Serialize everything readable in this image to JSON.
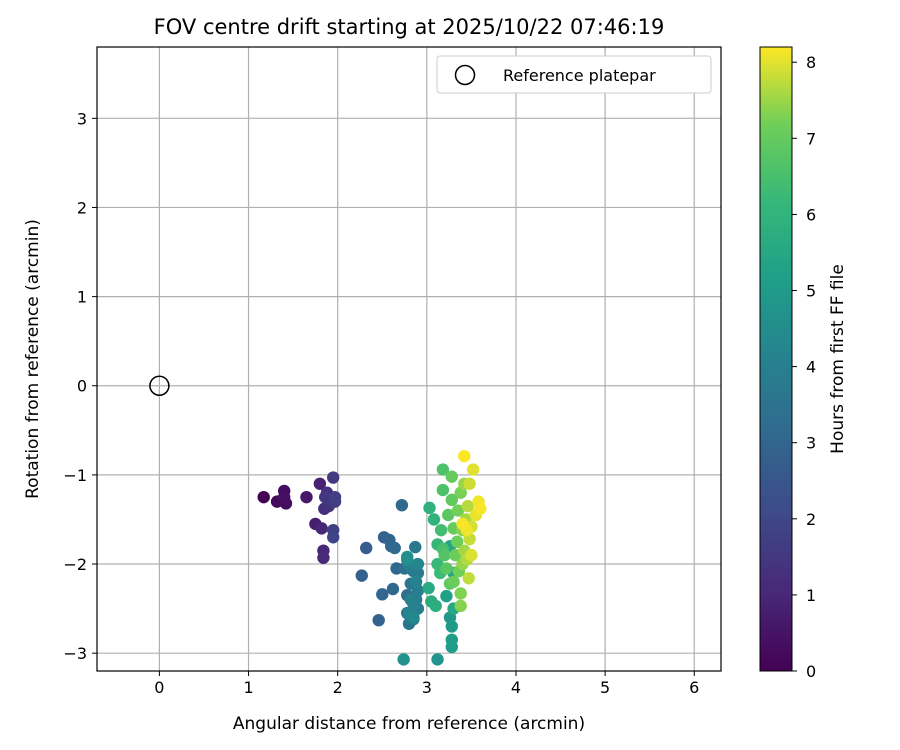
{
  "chart_data": {
    "type": "scatter",
    "title": "FOV centre drift starting at 2025/10/22 07:46:19",
    "xlabel": "Angular distance from reference (arcmin)",
    "ylabel": "Rotation from reference (arcmin)",
    "xlim": [
      -0.7,
      6.3
    ],
    "ylim": [
      -3.2,
      3.8
    ],
    "xticks": [
      0,
      1,
      2,
      3,
      4,
      5,
      6
    ],
    "yticks": [
      -3,
      -2,
      -1,
      0,
      1,
      2,
      3
    ],
    "grid": true,
    "legend": {
      "placement": "top-right",
      "entries": [
        "Reference platepar"
      ]
    },
    "reference_point": {
      "name": "Reference platepar",
      "x": 0,
      "y": 0
    },
    "colorbar": {
      "label": "Hours from first FF file",
      "range": [
        0,
        8.2
      ],
      "ticks": [
        0,
        1,
        2,
        3,
        4,
        5,
        6,
        7,
        8
      ],
      "colormap": "viridis"
    },
    "series": [
      {
        "points": [
          {
            "x": 1.17,
            "y": -1.25,
            "t": 0.05
          },
          {
            "x": 1.32,
            "y": -1.3,
            "t": 0.2
          },
          {
            "x": 1.4,
            "y": -1.18,
            "t": 0.3
          },
          {
            "x": 1.42,
            "y": -1.32,
            "t": 0.35
          },
          {
            "x": 1.4,
            "y": -1.25,
            "t": 0.4
          },
          {
            "x": 1.65,
            "y": -1.25,
            "t": 0.6
          },
          {
            "x": 1.75,
            "y": -1.55,
            "t": 0.75
          },
          {
            "x": 1.8,
            "y": -1.1,
            "t": 0.9
          },
          {
            "x": 1.82,
            "y": -1.6,
            "t": 1.0
          },
          {
            "x": 1.84,
            "y": -1.85,
            "t": 1.05
          },
          {
            "x": 1.84,
            "y": -1.93,
            "t": 1.1
          },
          {
            "x": 1.85,
            "y": -1.38,
            "t": 1.2
          },
          {
            "x": 1.88,
            "y": -1.2,
            "t": 1.3
          },
          {
            "x": 1.9,
            "y": -1.35,
            "t": 1.4
          },
          {
            "x": 1.86,
            "y": -1.25,
            "t": 1.45
          },
          {
            "x": 1.95,
            "y": -1.03,
            "t": 1.6
          },
          {
            "x": 1.97,
            "y": -1.3,
            "t": 1.7
          },
          {
            "x": 1.97,
            "y": -1.25,
            "t": 1.75
          },
          {
            "x": 1.95,
            "y": -1.62,
            "t": 1.8
          },
          {
            "x": 1.95,
            "y": -1.7,
            "t": 1.9
          },
          {
            "x": 2.27,
            "y": -2.13,
            "t": 2.8
          },
          {
            "x": 2.32,
            "y": -1.82,
            "t": 2.7
          },
          {
            "x": 2.46,
            "y": -2.63,
            "t": 2.9
          },
          {
            "x": 2.5,
            "y": -2.34,
            "t": 3.0
          },
          {
            "x": 2.52,
            "y": -1.7,
            "t": 2.9
          },
          {
            "x": 2.58,
            "y": -1.73,
            "t": 2.95
          },
          {
            "x": 2.6,
            "y": -1.8,
            "t": 3.0
          },
          {
            "x": 2.62,
            "y": -2.28,
            "t": 3.05
          },
          {
            "x": 2.66,
            "y": -2.05,
            "t": 3.1
          },
          {
            "x": 2.64,
            "y": -1.82,
            "t": 3.1
          },
          {
            "x": 2.72,
            "y": -1.34,
            "t": 3.2
          },
          {
            "x": 2.75,
            "y": -2.05,
            "t": 3.3
          },
          {
            "x": 2.78,
            "y": -2.35,
            "t": 3.4
          },
          {
            "x": 2.78,
            "y": -2.55,
            "t": 3.5
          },
          {
            "x": 2.8,
            "y": -2.67,
            "t": 3.55
          },
          {
            "x": 2.82,
            "y": -2.22,
            "t": 3.6
          },
          {
            "x": 2.85,
            "y": -2.62,
            "t": 3.7
          },
          {
            "x": 2.87,
            "y": -1.81,
            "t": 3.7
          },
          {
            "x": 2.88,
            "y": -2.4,
            "t": 3.75
          },
          {
            "x": 2.85,
            "y": -2.08,
            "t": 3.8
          },
          {
            "x": 2.9,
            "y": -2.1,
            "t": 3.85
          },
          {
            "x": 2.9,
            "y": -2.5,
            "t": 3.9
          },
          {
            "x": 2.9,
            "y": -2.3,
            "t": 3.95
          },
          {
            "x": 2.8,
            "y": -2.02,
            "t": 4.0
          },
          {
            "x": 2.85,
            "y": -2.45,
            "t": 4.05
          },
          {
            "x": 2.88,
            "y": -2.2,
            "t": 4.1
          },
          {
            "x": 2.82,
            "y": -2.4,
            "t": 4.15
          },
          {
            "x": 2.8,
            "y": -2.55,
            "t": 4.2
          },
          {
            "x": 2.9,
            "y": -2.0,
            "t": 4.3
          },
          {
            "x": 2.85,
            "y": -2.6,
            "t": 4.35
          },
          {
            "x": 2.78,
            "y": -1.95,
            "t": 4.5
          },
          {
            "x": 2.78,
            "y": -1.92,
            "t": 4.6
          },
          {
            "x": 2.74,
            "y": -3.07,
            "t": 4.7
          },
          {
            "x": 3.12,
            "y": -3.07,
            "t": 4.8
          },
          {
            "x": 3.26,
            "y": -2.6,
            "t": 4.9
          },
          {
            "x": 3.28,
            "y": -2.7,
            "t": 5.0
          },
          {
            "x": 3.28,
            "y": -2.85,
            "t": 5.05
          },
          {
            "x": 3.28,
            "y": -2.93,
            "t": 5.1
          },
          {
            "x": 3.22,
            "y": -2.36,
            "t": 5.2
          },
          {
            "x": 3.3,
            "y": -2.1,
            "t": 5.3
          },
          {
            "x": 3.26,
            "y": -1.8,
            "t": 5.4
          },
          {
            "x": 3.3,
            "y": -2.5,
            "t": 5.5
          },
          {
            "x": 3.02,
            "y": -2.27,
            "t": 5.6
          },
          {
            "x": 3.05,
            "y": -2.42,
            "t": 5.7
          },
          {
            "x": 3.1,
            "y": -2.47,
            "t": 5.8
          },
          {
            "x": 3.03,
            "y": -1.37,
            "t": 5.9
          },
          {
            "x": 3.08,
            "y": -1.5,
            "t": 6.0
          },
          {
            "x": 3.12,
            "y": -1.78,
            "t": 6.1
          },
          {
            "x": 3.12,
            "y": -2.0,
            "t": 6.2
          },
          {
            "x": 3.15,
            "y": -2.1,
            "t": 6.3
          },
          {
            "x": 3.16,
            "y": -1.62,
            "t": 6.4
          },
          {
            "x": 3.18,
            "y": -1.83,
            "t": 6.5
          },
          {
            "x": 3.18,
            "y": -0.94,
            "t": 6.6
          },
          {
            "x": 3.18,
            "y": -1.17,
            "t": 6.6
          },
          {
            "x": 3.2,
            "y": -1.9,
            "t": 6.7
          },
          {
            "x": 3.22,
            "y": -2.05,
            "t": 6.8
          },
          {
            "x": 3.24,
            "y": -1.45,
            "t": 6.85
          },
          {
            "x": 3.26,
            "y": -2.22,
            "t": 6.9
          },
          {
            "x": 3.28,
            "y": -1.28,
            "t": 6.95
          },
          {
            "x": 3.28,
            "y": -1.02,
            "t": 7.0
          },
          {
            "x": 3.3,
            "y": -1.6,
            "t": 7.05
          },
          {
            "x": 3.3,
            "y": -2.2,
            "t": 7.1
          },
          {
            "x": 3.32,
            "y": -1.9,
            "t": 7.1
          },
          {
            "x": 3.34,
            "y": -1.75,
            "t": 7.15
          },
          {
            "x": 3.36,
            "y": -2.08,
            "t": 7.2
          },
          {
            "x": 3.35,
            "y": -1.4,
            "t": 7.2
          },
          {
            "x": 3.38,
            "y": -1.2,
            "t": 7.25
          },
          {
            "x": 3.38,
            "y": -2.33,
            "t": 7.3
          },
          {
            "x": 3.38,
            "y": -2.47,
            "t": 7.35
          },
          {
            "x": 3.4,
            "y": -1.62,
            "t": 7.4
          },
          {
            "x": 3.4,
            "y": -2.0,
            "t": 7.45
          },
          {
            "x": 3.42,
            "y": -1.1,
            "t": 7.5
          },
          {
            "x": 3.42,
            "y": -1.85,
            "t": 7.55
          },
          {
            "x": 3.44,
            "y": -1.5,
            "t": 7.6
          },
          {
            "x": 3.45,
            "y": -1.95,
            "t": 7.65
          },
          {
            "x": 3.46,
            "y": -1.35,
            "t": 7.7
          },
          {
            "x": 3.47,
            "y": -2.16,
            "t": 7.75
          },
          {
            "x": 3.48,
            "y": -1.72,
            "t": 7.8
          },
          {
            "x": 3.48,
            "y": -1.1,
            "t": 7.85
          },
          {
            "x": 3.5,
            "y": -1.58,
            "t": 7.9
          },
          {
            "x": 3.5,
            "y": -1.9,
            "t": 7.95
          },
          {
            "x": 3.52,
            "y": -0.94,
            "t": 8.0
          },
          {
            "x": 3.55,
            "y": -1.45,
            "t": 8.05
          },
          {
            "x": 3.58,
            "y": -1.3,
            "t": 8.1
          },
          {
            "x": 3.6,
            "y": -1.38,
            "t": 8.15
          },
          {
            "x": 3.42,
            "y": -0.79,
            "t": 8.2
          },
          {
            "x": 3.4,
            "y": -1.55,
            "t": 8.15
          },
          {
            "x": 3.45,
            "y": -1.62,
            "t": 8.1
          }
        ]
      }
    ]
  }
}
